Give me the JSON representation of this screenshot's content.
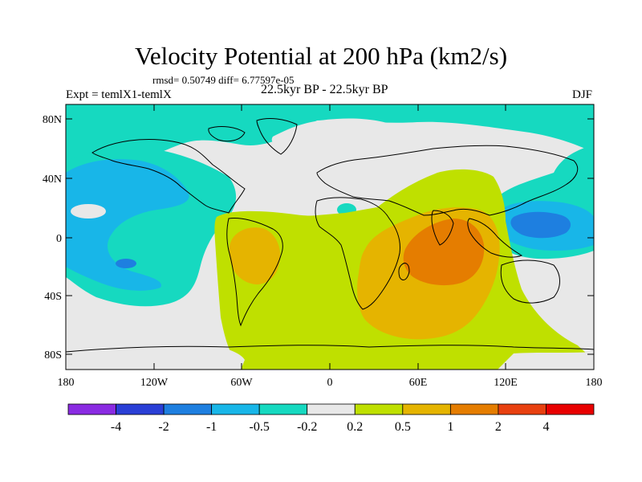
{
  "title": "Velocity Potential at 200 hPa (km2/s)",
  "stats": "rmsd= 0.50749 diff= 6.77597e-05",
  "experiment": "Expt = temlX1-temlX",
  "period": "22.5kyr BP - 22.5kyr BP",
  "season": "DJF",
  "map": {
    "lon_labels": [
      "180",
      "120W",
      "60W",
      "0",
      "60E",
      "120E",
      "180"
    ],
    "lat_labels": [
      "80N",
      "40N",
      "0",
      "40S",
      "80S"
    ]
  },
  "colorbar": {
    "labels": [
      "-4",
      "-2",
      "-1",
      "-0.5",
      "-0.2",
      "0.2",
      "0.5",
      "1",
      "2",
      "4"
    ],
    "colors": [
      "#8a2be2",
      "#2a3fd6",
      "#1e7fe0",
      "#18b6e8",
      "#16d9c0",
      "#e8e8e8",
      "#bfe000",
      "#e5b400",
      "#e57d00",
      "#e84010",
      "#e80000"
    ]
  },
  "colors": {
    "neutral": "#e8e8e8",
    "weak_neg": "#16d9c0",
    "mod_neg": "#18b6e8",
    "strong_neg": "#1e7fe0",
    "weak_pos": "#bfe000",
    "mod_pos": "#e5b400",
    "strong_pos": "#e57d00"
  }
}
